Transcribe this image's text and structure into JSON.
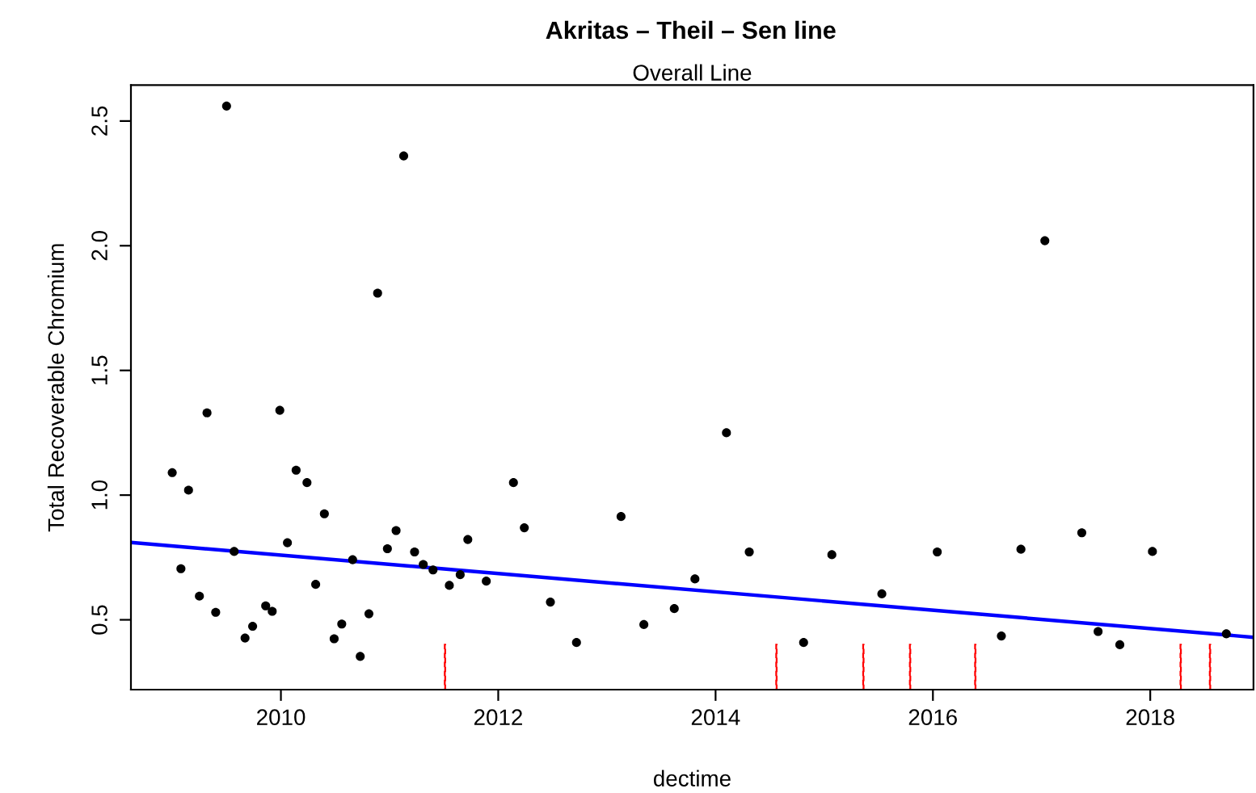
{
  "chart_data": {
    "type": "scatter",
    "title": "Akritas – Theil – Sen line",
    "subtitle": "Overall Line",
    "xlabel": "dectime",
    "ylabel": "Total Recoverable Chromium",
    "xlim": [
      2008.62,
      2018.95
    ],
    "xticks": [
      2010,
      2012,
      2014,
      2016,
      2018
    ],
    "ylim": [
      0.22,
      2.644
    ],
    "yticks": [
      0.5,
      {
        "value": 1,
        "label": "1.0"
      },
      1.5,
      {
        "value": 2,
        "label": "2.0"
      },
      2.5
    ],
    "grid": false,
    "legend": false,
    "series": [
      {
        "color": "#000000",
        "marker": "circle",
        "x": [
          2009.0,
          2009.08,
          2009.15,
          2009.25,
          2009.32,
          2009.4,
          2009.5,
          2009.57,
          2009.67,
          2009.74,
          2009.86,
          2009.92,
          2009.99,
          2010.06,
          2010.14,
          2010.24,
          2010.32,
          2010.4,
          2010.49,
          2010.56,
          2010.66,
          2010.73,
          2010.81,
          2010.89,
          2010.98,
          2011.06,
          2011.13,
          2011.23,
          2011.31,
          2011.4,
          2011.55,
          2011.65,
          2011.72,
          2011.89,
          2012.14,
          2012.24,
          2012.48,
          2012.72,
          2013.13,
          2013.34,
          2013.62,
          2013.81,
          2014.1,
          2014.31,
          2014.81,
          2015.07,
          2015.53,
          2016.04,
          2016.63,
          2016.81,
          2017.03,
          2017.37,
          2017.52,
          2017.72,
          2018.02,
          2018.7
        ],
        "values": [
          1.09,
          0.705,
          1.02,
          0.595,
          1.33,
          0.53,
          2.56,
          0.774,
          0.427,
          0.474,
          0.556,
          0.534,
          1.34,
          0.809,
          1.1,
          1.05,
          0.642,
          0.925,
          0.424,
          0.483,
          0.741,
          0.353,
          0.524,
          1.81,
          0.785,
          0.858,
          2.36,
          0.772,
          0.722,
          0.7,
          0.638,
          0.681,
          0.822,
          0.655,
          1.05,
          0.869,
          0.571,
          0.409,
          0.914,
          0.481,
          0.545,
          0.664,
          1.25,
          0.772,
          0.409,
          0.761,
          0.604,
          0.772,
          0.435,
          0.783,
          2.02,
          0.849,
          0.453,
          0.4,
          0.774,
          0.444
        ]
      },
      {
        "type": "line",
        "color": "#0000ff",
        "line_style": "solid",
        "x": [
          2008.62,
          2018.95
        ],
        "values": [
          0.81,
          0.43
        ]
      },
      {
        "type": "bar",
        "color": "#ff0000",
        "line_style": "dashed",
        "x": [
          2011.51,
          2014.56,
          2015.36,
          2015.79,
          2016.39,
          2018.28,
          2018.55
        ],
        "base": [
          0.22,
          0.22,
          0.22,
          0.22,
          0.22,
          0.22,
          0.22
        ],
        "values": [
          0.18,
          0.18,
          0.18,
          0.18,
          0.18,
          0.18,
          0.18
        ]
      }
    ]
  }
}
